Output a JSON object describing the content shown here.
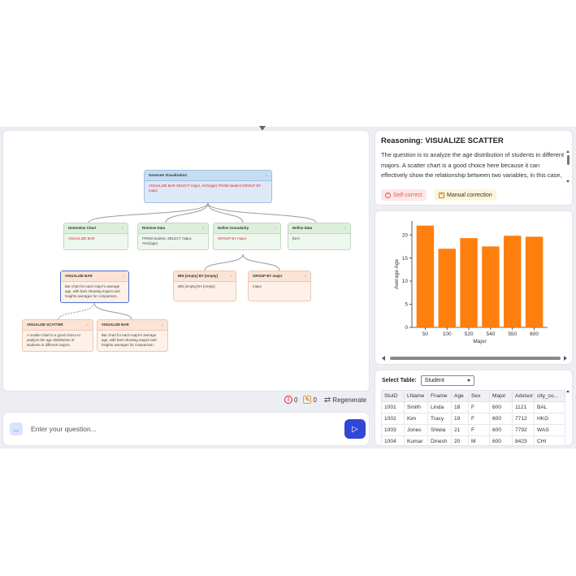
{
  "flow": {
    "root": {
      "title": "Generate Visualization",
      "body": "VISUALIZE BAR SELECT major, AVG(age) FROM student GROUP BY major"
    },
    "steps": [
      {
        "title": "Determine Chart",
        "body": "VISUALIZE BAR"
      },
      {
        "title": "Retrieve Data",
        "body": "FROM student, SELECT major, AVG(age)"
      },
      {
        "title": "Define Granularity",
        "body": "GROUP BY major"
      },
      {
        "title": "Refine Data",
        "body": "[NA]"
      }
    ],
    "sub": [
      {
        "title": "VISUALIZE BAR",
        "body": "Bar chart for each major's average age, with bars showing majors and heights averages for comparison."
      },
      {
        "title": "BIN [empty] BY [empty]",
        "body": "BIN [empty] BY [empty]"
      },
      {
        "title": "GROUP BY major",
        "body": "major"
      }
    ],
    "leaves": [
      {
        "title": "VISUALIZE SCATTER",
        "body": "A scatter chart is a good choice to analyze the age distribution of students in different majors."
      },
      {
        "title": "VISUALIZE BAR",
        "body": "Bar chart for each major's average age, with bars showing majors and heights averages for comparison."
      }
    ],
    "close_glyph": "×"
  },
  "actions": {
    "errors_count": "0",
    "edits_count": "0",
    "regenerate_label": "Regenerate"
  },
  "question": {
    "placeholder": "Enter your question..."
  },
  "reasoning": {
    "title": "Reasoning: VISUALIZE SCATTER",
    "text": "The question is to analyze the age distribution of students in different majors. A scatter chart is a good choice here because it can effectively show the relationship between two variables, in this case, the major and the age of students. Each point on the",
    "self_correct_label": "Self-correct",
    "manual_correction_label": "Manual correction"
  },
  "chart_data": {
    "type": "bar",
    "categories": [
      "50",
      "100",
      "520",
      "540",
      "550",
      "600"
    ],
    "values": [
      22.0,
      17.0,
      19.3,
      17.5,
      19.8,
      19.6
    ],
    "title": "",
    "xlabel": "Major",
    "ylabel": "Average Age",
    "ylim": [
      0,
      23
    ],
    "yticks": [
      0,
      5,
      10,
      15,
      20
    ],
    "color": "#ff7f0e"
  },
  "table": {
    "label": "Select Table:",
    "selected": "Student",
    "columns": [
      "StuID",
      "LName",
      "Fname",
      "Age",
      "Sex",
      "Major",
      "Advisor",
      "city_co..."
    ],
    "rows": [
      [
        "1001",
        "Smith",
        "Linda",
        "18",
        "F",
        "600",
        "1121",
        "BAL"
      ],
      [
        "1002",
        "Kim",
        "Tracy",
        "19",
        "F",
        "600",
        "7712",
        "HKG"
      ],
      [
        "1003",
        "Jones",
        "Shiela",
        "21",
        "F",
        "600",
        "7792",
        "WAS"
      ],
      [
        "1004",
        "Kumar",
        "Dinesh",
        "20",
        "M",
        "600",
        "8423",
        "CHI"
      ]
    ]
  },
  "colors": {
    "accent": "#3147d6",
    "bar": "#ff7f0e",
    "error": "#e02424"
  }
}
